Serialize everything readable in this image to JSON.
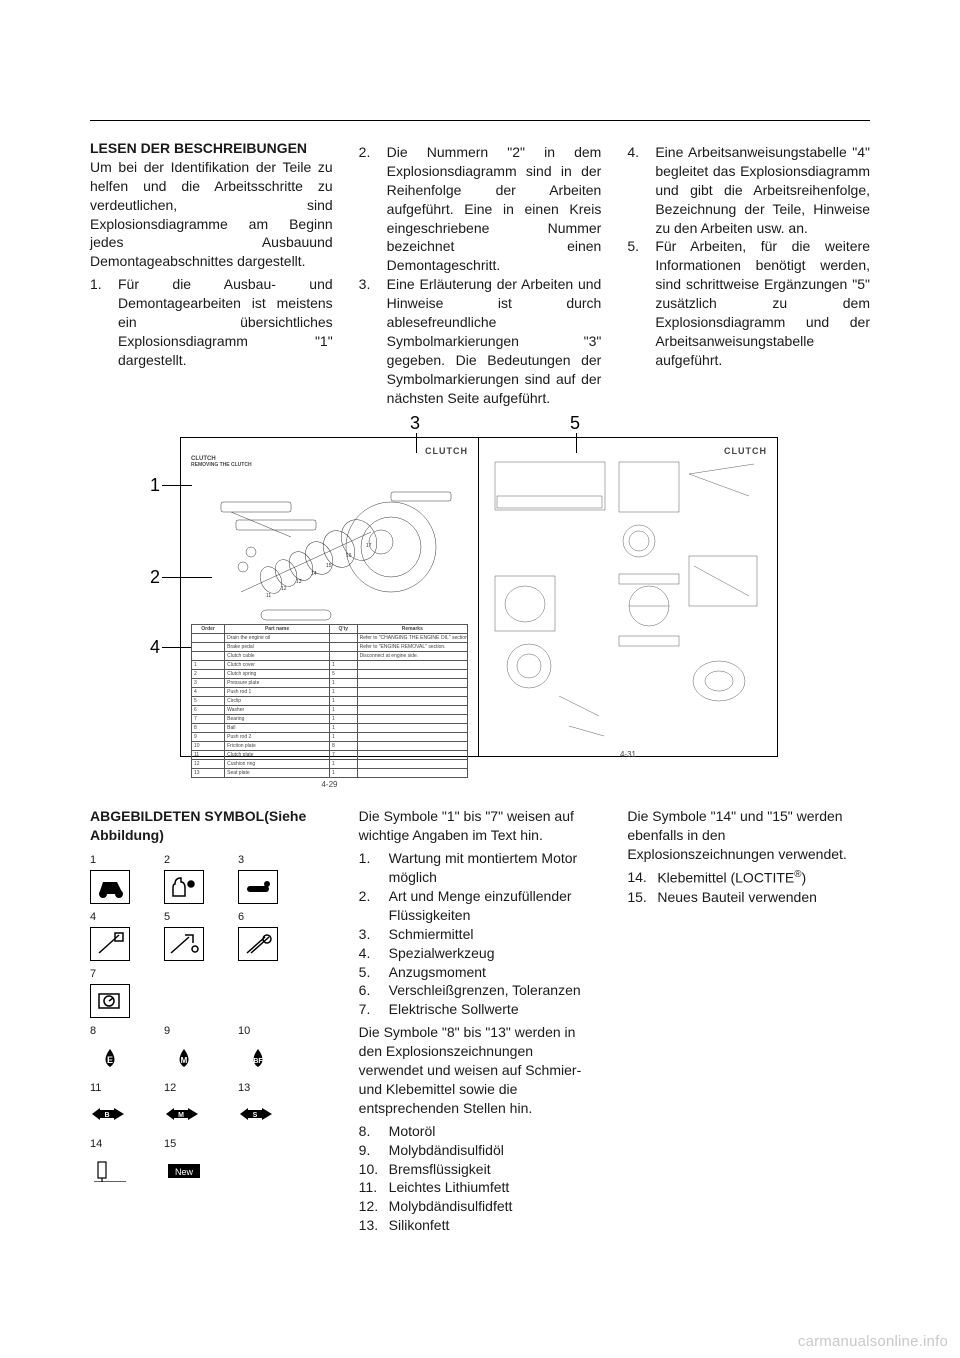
{
  "top": {
    "col1": {
      "heading": "LESEN DER BESCHREIBUNGEN",
      "para": "Um bei der Identifikation der Teile zu helfen und die Arbeitsschritte zu verdeutlichen, sind Explosionsdiagramme am Beginn jedes Ausbauund Demontageabschnittes dargestellt.",
      "item1_num": "1.",
      "item1_txt": "Für die Ausbau- und Demontagearbeiten ist meistens ein übersichtliches Explosionsdiagramm \"1\" dargestellt."
    },
    "col2": {
      "item2_num": "2.",
      "item2_txt": "Die Nummern \"2\" in dem Explosionsdiagramm sind in der Reihenfolge der Arbeiten aufgeführt. Eine in einen Kreis eingeschriebene Nummer bezeichnet einen Demontageschritt.",
      "item3_num": "3.",
      "item3_txt": "Eine Erläuterung der Arbeiten und Hinweise ist durch ablesefreundliche Symbolmarkierungen \"3\" gegeben. Die Bedeutungen der Symbolmarkierungen sind auf der nächsten Seite aufgeführt."
    },
    "col3": {
      "item4_num": "4.",
      "item4_txt": "Eine Arbeitsanweisungstabelle \"4\" begleitet das Explosionsdiagramm und gibt die Arbeitsreihenfolge, Bezeichnung der Teile, Hinweise zu den Arbeiten usw. an.",
      "item5_num": "5.",
      "item5_txt": "Für Arbeiten, für die weitere Informationen benötigt werden, sind schrittweise Ergänzungen \"5\" zusätzlich zu dem Explosionsdiagramm und der Arbeitsanweisungstabelle aufgeführt."
    }
  },
  "figure": {
    "callouts": [
      "1",
      "2",
      "3",
      "4",
      "5"
    ],
    "page_left": {
      "title": "CLUTCH",
      "subtitle1": "CLUTCH",
      "subtitle2": "REMOVING THE CLUTCH",
      "pgnum": "4-29",
      "table": {
        "headers": [
          "Order",
          "Part name",
          "Q'ty",
          "Remarks"
        ],
        "rows": [
          [
            "",
            "Drain the engine oil",
            "",
            "Refer to \"CHANGING THE ENGINE OIL\" section in the CHAPTER 3."
          ],
          [
            "",
            "Brake pedal",
            "",
            "Refer to \"ENGINE REMOVAL\" section."
          ],
          [
            "",
            "Clutch cable",
            "",
            "Disconnect at engine side."
          ],
          [
            "1",
            "Clutch cover",
            "1",
            ""
          ],
          [
            "2",
            "Clutch spring",
            "5",
            ""
          ],
          [
            "3",
            "Pressure plate",
            "1",
            ""
          ],
          [
            "4",
            "Push rod 1",
            "1",
            ""
          ],
          [
            "5",
            "Circlip",
            "1",
            ""
          ],
          [
            "6",
            "Washer",
            "1",
            ""
          ],
          [
            "7",
            "Bearing",
            "1",
            ""
          ],
          [
            "8",
            "Ball",
            "1",
            ""
          ],
          [
            "9",
            "Push rod 2",
            "1",
            ""
          ],
          [
            "10",
            "Friction plate",
            "8",
            ""
          ],
          [
            "11",
            "Clutch plate",
            "7",
            ""
          ],
          [
            "12",
            "Cushion ring",
            "1",
            ""
          ],
          [
            "13",
            "Seat plate",
            "1",
            ""
          ]
        ]
      }
    },
    "page_right": {
      "title": "CLUTCH",
      "pgnum": "4-31"
    }
  },
  "bottom": {
    "col1": {
      "heading": "ABGEBILDETEN SYMBOL(Siehe Abbildung)"
    },
    "col2": {
      "intro": "Die Symbole \"1\" bis \"7\" weisen auf wichtige Angaben im Text hin.",
      "items": [
        {
          "n": "1.",
          "t": "Wartung mit montiertem Motor möglich"
        },
        {
          "n": "2.",
          "t": "Art und Menge einzufüllender Flüssigkeiten"
        },
        {
          "n": "3.",
          "t": "Schmiermittel"
        },
        {
          "n": "4.",
          "t": "Spezialwerkzeug"
        },
        {
          "n": "5.",
          "t": "Anzugsmoment"
        },
        {
          "n": "6.",
          "t": "Verschleißgrenzen, Toleranzen"
        },
        {
          "n": "7.",
          "t": "Elektrische Sollwerte"
        }
      ],
      "intro2": "Die Symbole \"8\" bis \"13\" werden in den Explosionszeichnungen verwendet und weisen auf Schmier- und Klebemittel sowie die entsprechenden Stellen hin.",
      "items2": [
        {
          "n": "8.",
          "t": "Motoröl"
        },
        {
          "n": "9.",
          "t": "Molybdändisulfidöl"
        },
        {
          "n": "10.",
          "t": "Bremsflüssigkeit"
        },
        {
          "n": "11.",
          "t": "Leichtes Lithiumfett"
        },
        {
          "n": "12.",
          "t": "Molybdändisulfidfett"
        },
        {
          "n": "13.",
          "t": "Silikonfett"
        }
      ]
    },
    "col3": {
      "intro": "Die Symbole \"14\" und \"15\" werden ebenfalls in den Explosionszeichnungen verwendet.",
      "items": [
        {
          "n": "14.",
          "t_pre": "Klebemittel (LOCTITE",
          "t_sup": "®",
          "t_post": ")"
        },
        {
          "n": "15.",
          "t": "Neues Bauteil verwenden"
        }
      ]
    }
  },
  "watermark": "carmanualsonline.info"
}
